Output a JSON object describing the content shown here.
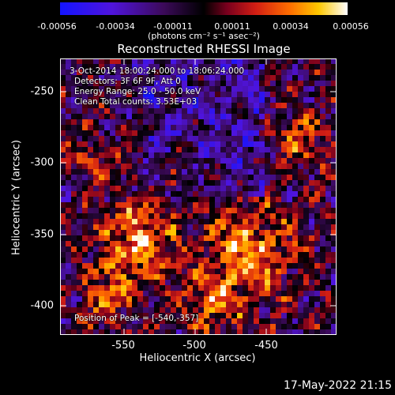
{
  "colorbar": {
    "ticks": [
      "-0.00056",
      "-0.00034",
      "-0.00011",
      "0.00011",
      "0.00034",
      "0.00056"
    ],
    "units": "(photons cm⁻² s⁻¹ asec⁻²)",
    "range": [
      -0.00056,
      0.00056
    ]
  },
  "plot": {
    "title": "Reconstructed RHESSI Image",
    "xlabel": "Heliocentric X (arcsec)",
    "ylabel": "Heliocentric Y (arcsec)",
    "xticks": [
      "-550",
      "-500",
      "-450"
    ],
    "yticks": [
      "-250",
      "-300",
      "-350",
      "-400"
    ],
    "xlim": [
      -595,
      -410
    ],
    "ylim": [
      -418,
      -232
    ]
  },
  "annotations": {
    "time_range": "3-Oct-2014 18:00:24.000 to 18:06:24.000",
    "detectors": "Detectors: 3F 6F 9F, Att 0",
    "energy": "Energy Range: 25.0 - 50.0 keV",
    "clean": "Clean    Total counts: 3.53E+03",
    "peak": "Position of Peak = [-540,-357]"
  },
  "timestamp": "17-May-2022 21:15",
  "colors": {
    "background": "#000000",
    "text": "#ffffff"
  }
}
